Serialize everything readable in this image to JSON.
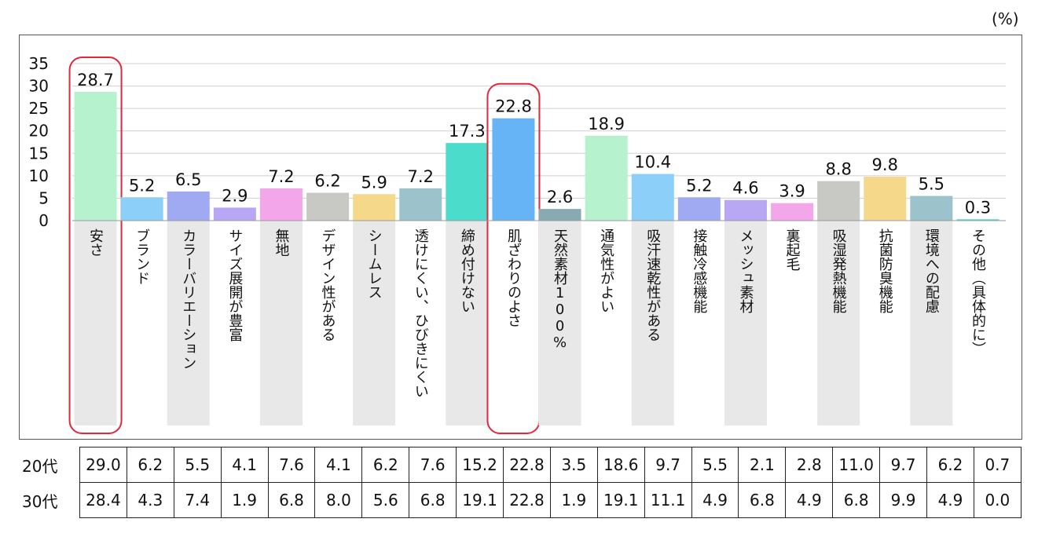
{
  "unit_label": "(%)",
  "chart_data": {
    "type": "bar",
    "title": "",
    "xlabel": "",
    "ylabel": "",
    "ylim": [
      0,
      35
    ],
    "yticks": [
      0,
      5,
      10,
      15,
      20,
      25,
      30,
      35
    ],
    "grid": true,
    "categories": [
      "安さ",
      "ブランド",
      "カラーバリエーション",
      "サイズ展開が豊富",
      "無地",
      "デザイン性がある",
      "シームレス",
      "透けにくい、ひびきにくい",
      "締め付けない",
      "肌ざわりのよさ",
      "天然素材100%",
      "通気性がよい",
      "吸汗速乾性がある",
      "接触冷感機能",
      "メッシュ素材",
      "裏起毛",
      "吸湿発熱機能",
      "抗菌防臭機能",
      "環境への配慮",
      "その他（具体的に）"
    ],
    "values": [
      28.7,
      5.2,
      6.5,
      2.9,
      7.2,
      6.2,
      5.9,
      7.2,
      17.3,
      22.8,
      2.6,
      18.9,
      10.4,
      5.2,
      4.6,
      3.9,
      8.8,
      9.8,
      5.5,
      0.3
    ],
    "value_labels": [
      "28.7",
      "5.2",
      "6.5",
      "2.9",
      "7.2",
      "6.2",
      "5.9",
      "7.2",
      "17.3",
      "22.8",
      "2.6",
      "18.9",
      "10.4",
      "5.2",
      "4.6",
      "3.9",
      "8.8",
      "9.8",
      "5.5",
      "0.3"
    ],
    "bar_colors": [
      "#b5f2cd",
      "#8ccff9",
      "#a0aaf3",
      "#b8a8f3",
      "#f4a6ea",
      "#c8c8c4",
      "#f5d88a",
      "#9cc2cc",
      "#4cdccb",
      "#66b3f6",
      "#88abb3",
      "#b5f2cd",
      "#8ccff9",
      "#a0aaf3",
      "#b8a8f3",
      "#f4a6ea",
      "#c8c8c4",
      "#f5d88a",
      "#9cc2cc",
      "#4cdccb"
    ],
    "highlighted": [
      "安さ",
      "肌ざわりのよさ"
    ],
    "highlight_color": "#e8253a",
    "label_band_color": "#e8e8e8"
  },
  "age_table": {
    "rows": [
      {
        "label": "20代",
        "values": [
          "29.0",
          "6.2",
          "5.5",
          "4.1",
          "7.6",
          "4.1",
          "6.2",
          "7.6",
          "15.2",
          "22.8",
          "3.5",
          "18.6",
          "9.7",
          "5.5",
          "2.1",
          "2.8",
          "11.0",
          "9.7",
          "6.2",
          "0.7"
        ]
      },
      {
        "label": "30代",
        "values": [
          "28.4",
          "4.3",
          "7.4",
          "1.9",
          "6.8",
          "8.0",
          "5.6",
          "6.8",
          "19.1",
          "22.8",
          "1.9",
          "19.1",
          "11.1",
          "4.9",
          "6.8",
          "4.9",
          "6.8",
          "9.9",
          "4.9",
          "0.0"
        ]
      }
    ]
  }
}
